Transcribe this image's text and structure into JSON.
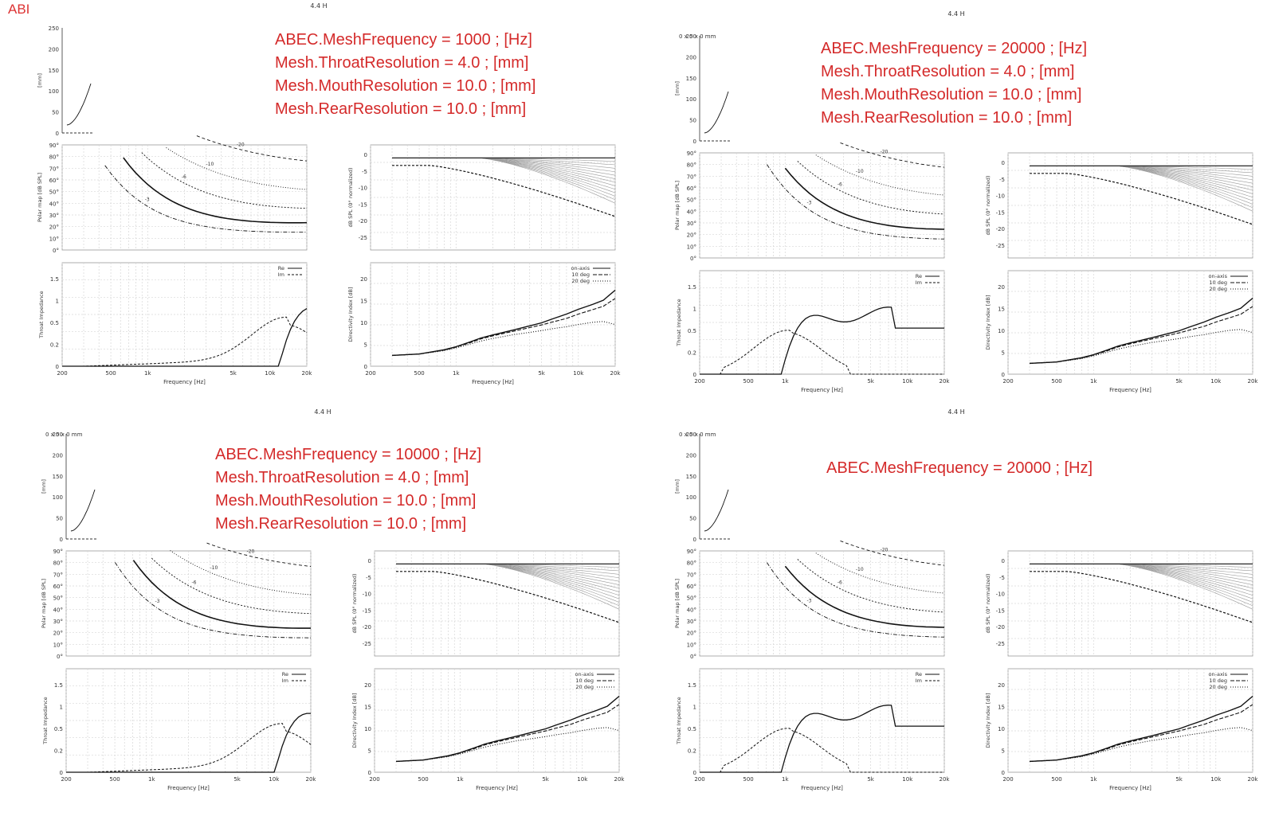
{
  "corner_tag": "ABI",
  "colors": {
    "annotation": "#d42a2a",
    "grid": "#d6d6d6",
    "axis": "#333333",
    "curve": "#111111"
  },
  "panels": [
    {
      "title": "4.4 H",
      "subtitle": "",
      "annotations": [
        "ABEC.MeshFrequency = 1000 ; [Hz]",
        "Mesh.ThroatResolution = 4.0 ; [mm]",
        "Mesh.MouthResolution = 10.0 ; [mm]",
        "Mesh.RearResolution = 10.0 ; [mm]"
      ]
    },
    {
      "title": "4.4 H",
      "subtitle": "0 x 0 x 0 mm",
      "annotations": [
        "ABEC.MeshFrequency = 20000 ; [Hz]",
        "Mesh.ThroatResolution = 4.0 ; [mm]",
        "Mesh.MouthResolution = 10.0 ; [mm]",
        "Mesh.RearResolution = 10.0 ; [mm]"
      ]
    },
    {
      "title": "4.4 H",
      "subtitle": "0 x 0 x 0 mm",
      "annotations": [
        "ABEC.MeshFrequency = 10000 ; [Hz]",
        "Mesh.ThroatResolution = 4.0 ; [mm]",
        "Mesh.MouthResolution = 10.0 ; [mm]",
        "Mesh.RearResolution = 10.0 ; [mm]"
      ]
    },
    {
      "title": "4.4 H",
      "subtitle": "0 x 0 x 0 mm",
      "annotations": [
        "ABEC.MeshFrequency = 20000 ; [Hz]"
      ]
    }
  ],
  "chart_data": [
    {
      "type": "line",
      "name": "profile",
      "ylabel": "[mm]",
      "ylim": [
        0,
        250
      ],
      "y_ticks": [
        "250",
        "200",
        "150",
        "100",
        "50",
        "0"
      ],
      "grid": false
    },
    {
      "type": "heatmap",
      "name": "polar-map",
      "ylabel": "Polar map [dB SPL]",
      "y_ticks": [
        "90°",
        "80°",
        "70°",
        "60°",
        "50°",
        "40°",
        "30°",
        "20°",
        "10°",
        "0°"
      ],
      "contour_labels": [
        "-3",
        "-6",
        "-10",
        "-20"
      ],
      "grid": true
    },
    {
      "type": "line",
      "name": "normalized-response",
      "ylabel": "dB SPL (0° normalized)",
      "ylim": [
        -28,
        2
      ],
      "y_ticks": [
        "0",
        "-5",
        "-10",
        "-15",
        "-20",
        "-25"
      ],
      "grid": true
    },
    {
      "type": "line",
      "name": "throat-impedance",
      "ylabel": "Throat Impedance",
      "xlabel": "Frequency [Hz]",
      "x_ticks": [
        "200",
        "500",
        "1k",
        "5k",
        "10k",
        "20k"
      ],
      "y_ticks": [
        "1.5",
        "1",
        "0.5",
        "0.2",
        "0"
      ],
      "legend": [
        "Re",
        "Im"
      ],
      "legend_position": "top-right",
      "grid": true
    },
    {
      "type": "line",
      "name": "directivity-index",
      "ylabel": "Directivity Index [dB]",
      "xlabel": "Frequency [Hz]",
      "ylim": [
        0,
        22
      ],
      "x_ticks": [
        "200",
        "500",
        "1k",
        "5k",
        "10k",
        "20k"
      ],
      "y_ticks": [
        "20",
        "15",
        "10",
        "5",
        "0"
      ],
      "legend": [
        "on-axis",
        "10 deg",
        "20 deg"
      ],
      "legend_position": "top-right",
      "series": [
        {
          "name": "on-axis",
          "freq": [
            300,
            500,
            800,
            1000,
            1300,
            1600,
            2000,
            3000,
            4000,
            5000,
            6000,
            8000,
            10000,
            13000,
            16000,
            20000
          ],
          "values": [
            2.5,
            2.8,
            3.8,
            4.5,
            5.6,
            6.5,
            7.2,
            8.4,
            9.3,
            10.0,
            10.8,
            12.0,
            13.1,
            14.2,
            15.2,
            17.5
          ]
        },
        {
          "name": "10 deg",
          "freq": [
            300,
            500,
            800,
            1000,
            1300,
            1600,
            2000,
            3000,
            4000,
            5000,
            6000,
            8000,
            10000,
            13000,
            16000,
            20000
          ],
          "values": [
            2.5,
            2.8,
            3.7,
            4.4,
            5.4,
            6.3,
            7.0,
            8.1,
            8.9,
            9.5,
            10.1,
            11.0,
            12.0,
            13.0,
            13.8,
            15.6
          ]
        },
        {
          "name": "20 deg",
          "freq": [
            300,
            500,
            800,
            1000,
            1300,
            1600,
            2000,
            3000,
            4000,
            5000,
            6000,
            8000,
            10000,
            13000,
            16000,
            20000
          ],
          "values": [
            2.5,
            2.8,
            3.6,
            4.2,
            5.1,
            5.8,
            6.4,
            7.3,
            7.8,
            8.2,
            8.6,
            9.1,
            9.6,
            10.1,
            10.3,
            9.6
          ]
        }
      ]
    }
  ]
}
